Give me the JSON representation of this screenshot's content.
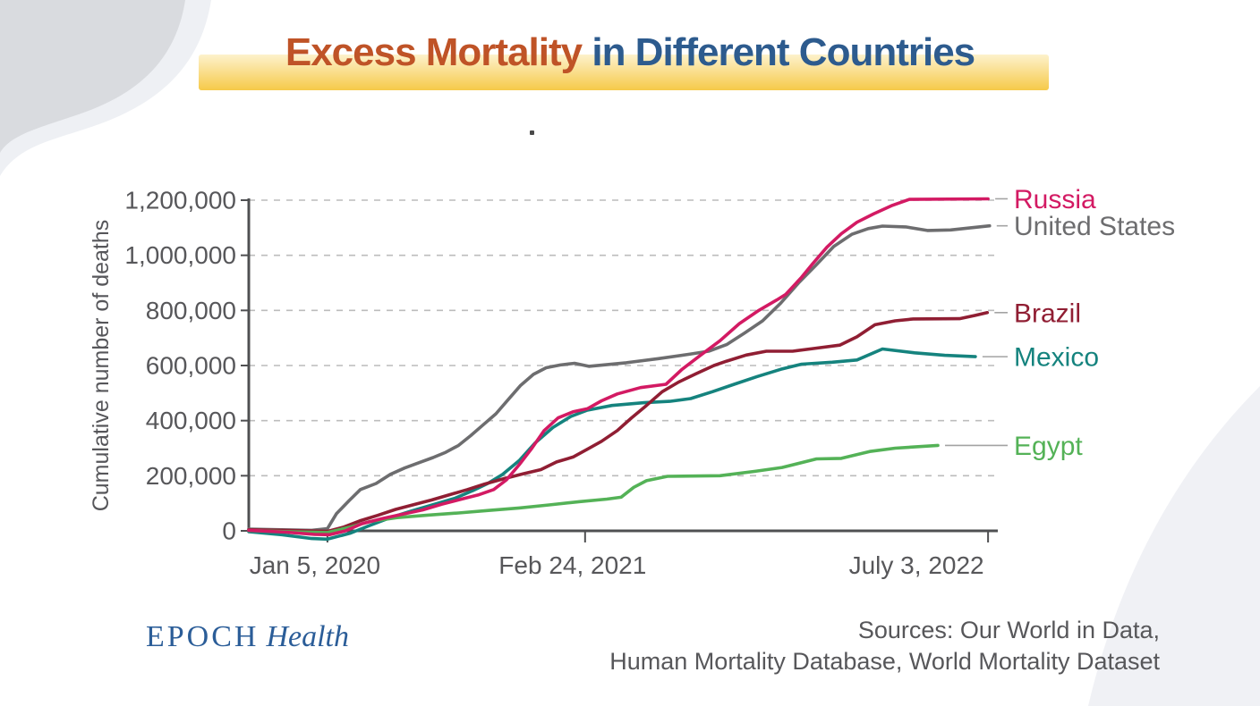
{
  "title": {
    "accent": "Excess Mortality",
    "rest": " in Different Countries"
  },
  "colors": {
    "title_accent": "#bf5327",
    "title_rest": "#2d5b8e",
    "band_top": "#fdf2cc",
    "band_bottom": "#f6ca49",
    "brand": "#2b5d98",
    "sources_text": "#57575a",
    "axis": "#4f5052",
    "tick_text": "#57575a",
    "grid": "#bcbcbc",
    "leader_line": "#a3a3a3",
    "blob_dark": "#d9dbdf",
    "blob_light": "#eef0f4",
    "corner_light": "#f0f1f5",
    "background": "#ffffff"
  },
  "footer": {
    "brand_primary": "EPOCH",
    "brand_secondary": "Health",
    "sources_line1": "Sources: Our World in Data,",
    "sources_line2": "Human Mortality Database, World Mortality Dataset"
  },
  "chart_data": {
    "type": "line",
    "title": "Excess Mortality in Different Countries",
    "xlabel": "",
    "ylabel": "Cumulative number of deaths",
    "ylim": [
      0,
      1200000
    ],
    "grid": true,
    "legend_position": "right-of-line-ends",
    "y_ticks": [
      0,
      200000,
      400000,
      600000,
      800000,
      1000000,
      1200000
    ],
    "y_tick_labels": [
      "0",
      "200,000",
      "400,000",
      "600,000",
      "800,000",
      "1,000,000",
      "1,200,000"
    ],
    "x_ticks": [
      {
        "label": "Jan 5, 2020",
        "pos": 0.105
      },
      {
        "label": "Feb 24, 2021",
        "pos": 0.449
      },
      {
        "label": "July 3, 2022",
        "pos": 0.987
      }
    ],
    "series": [
      {
        "name": "Russia",
        "color": "#d31a63",
        "points": [
          [
            0.0,
            2000
          ],
          [
            0.05,
            -5000
          ],
          [
            0.088,
            -13000
          ],
          [
            0.108,
            -14000
          ],
          [
            0.129,
            0
          ],
          [
            0.151,
            26000
          ],
          [
            0.179,
            45000
          ],
          [
            0.206,
            61000
          ],
          [
            0.232,
            76000
          ],
          [
            0.258,
            97000
          ],
          [
            0.284,
            115000
          ],
          [
            0.306,
            130000
          ],
          [
            0.327,
            150000
          ],
          [
            0.344,
            185000
          ],
          [
            0.361,
            240000
          ],
          [
            0.378,
            300000
          ],
          [
            0.394,
            363000
          ],
          [
            0.413,
            410000
          ],
          [
            0.433,
            432000
          ],
          [
            0.452,
            443000
          ],
          [
            0.471,
            472000
          ],
          [
            0.492,
            497000
          ],
          [
            0.523,
            520000
          ],
          [
            0.557,
            532000
          ],
          [
            0.578,
            585000
          ],
          [
            0.602,
            635000
          ],
          [
            0.629,
            690000
          ],
          [
            0.655,
            752000
          ],
          [
            0.681,
            800000
          ],
          [
            0.705,
            838000
          ],
          [
            0.717,
            858000
          ],
          [
            0.738,
            920000
          ],
          [
            0.753,
            970000
          ],
          [
            0.772,
            1030000
          ],
          [
            0.791,
            1078000
          ],
          [
            0.812,
            1120000
          ],
          [
            0.834,
            1150000
          ],
          [
            0.858,
            1180000
          ],
          [
            0.882,
            1203000
          ],
          [
            0.987,
            1205000
          ]
        ]
      },
      {
        "name": "United States",
        "color": "#6d6d6f",
        "points": [
          [
            0.0,
            6000
          ],
          [
            0.044,
            4000
          ],
          [
            0.084,
            2000
          ],
          [
            0.105,
            8000
          ],
          [
            0.117,
            62000
          ],
          [
            0.134,
            110000
          ],
          [
            0.149,
            150000
          ],
          [
            0.17,
            172000
          ],
          [
            0.189,
            205000
          ],
          [
            0.208,
            228000
          ],
          [
            0.227,
            247000
          ],
          [
            0.246,
            266000
          ],
          [
            0.263,
            285000
          ],
          [
            0.28,
            310000
          ],
          [
            0.296,
            345000
          ],
          [
            0.313,
            385000
          ],
          [
            0.33,
            425000
          ],
          [
            0.347,
            478000
          ],
          [
            0.363,
            528000
          ],
          [
            0.38,
            568000
          ],
          [
            0.397,
            592000
          ],
          [
            0.416,
            602000
          ],
          [
            0.435,
            608000
          ],
          [
            0.454,
            597000
          ],
          [
            0.504,
            610000
          ],
          [
            0.547,
            625000
          ],
          [
            0.588,
            641000
          ],
          [
            0.614,
            652000
          ],
          [
            0.638,
            676000
          ],
          [
            0.662,
            718000
          ],
          [
            0.686,
            762000
          ],
          [
            0.71,
            826000
          ],
          [
            0.734,
            900000
          ],
          [
            0.758,
            966000
          ],
          [
            0.781,
            1032000
          ],
          [
            0.805,
            1076000
          ],
          [
            0.827,
            1097000
          ],
          [
            0.846,
            1106000
          ],
          [
            0.877,
            1103000
          ],
          [
            0.906,
            1090000
          ],
          [
            0.937,
            1092000
          ],
          [
            0.965,
            1100000
          ],
          [
            0.989,
            1107000
          ]
        ]
      },
      {
        "name": "Brazil",
        "color": "#901e33",
        "points": [
          [
            0.0,
            4000
          ],
          [
            0.062,
            1000
          ],
          [
            0.105,
            -2000
          ],
          [
            0.127,
            14000
          ],
          [
            0.148,
            36000
          ],
          [
            0.172,
            56000
          ],
          [
            0.196,
            78000
          ],
          [
            0.22,
            95000
          ],
          [
            0.244,
            112000
          ],
          [
            0.268,
            131000
          ],
          [
            0.292,
            150000
          ],
          [
            0.315,
            170000
          ],
          [
            0.339,
            188000
          ],
          [
            0.366,
            207000
          ],
          [
            0.39,
            222000
          ],
          [
            0.411,
            250000
          ],
          [
            0.433,
            268000
          ],
          [
            0.452,
            296000
          ],
          [
            0.471,
            325000
          ],
          [
            0.492,
            364000
          ],
          [
            0.511,
            410000
          ],
          [
            0.531,
            455000
          ],
          [
            0.552,
            505000
          ],
          [
            0.574,
            540000
          ],
          [
            0.597,
            570000
          ],
          [
            0.621,
            600000
          ],
          [
            0.638,
            616000
          ],
          [
            0.664,
            638000
          ],
          [
            0.691,
            652000
          ],
          [
            0.726,
            652000
          ],
          [
            0.755,
            662000
          ],
          [
            0.789,
            674000
          ],
          [
            0.812,
            704000
          ],
          [
            0.836,
            748000
          ],
          [
            0.863,
            762000
          ],
          [
            0.887,
            769000
          ],
          [
            0.949,
            770000
          ],
          [
            0.97,
            782000
          ],
          [
            0.986,
            792000
          ]
        ]
      },
      {
        "name": "Mexico",
        "color": "#15837e",
        "points": [
          [
            0.0,
            -3000
          ],
          [
            0.044,
            -14000
          ],
          [
            0.084,
            -28000
          ],
          [
            0.105,
            -30000
          ],
          [
            0.136,
            -8000
          ],
          [
            0.16,
            18000
          ],
          [
            0.189,
            48000
          ],
          [
            0.217,
            72000
          ],
          [
            0.246,
            95000
          ],
          [
            0.275,
            118000
          ],
          [
            0.299,
            146000
          ],
          [
            0.319,
            172000
          ],
          [
            0.339,
            205000
          ],
          [
            0.361,
            255000
          ],
          [
            0.382,
            318000
          ],
          [
            0.406,
            375000
          ],
          [
            0.43,
            415000
          ],
          [
            0.452,
            438000
          ],
          [
            0.485,
            455000
          ],
          [
            0.528,
            465000
          ],
          [
            0.562,
            470000
          ],
          [
            0.59,
            480000
          ],
          [
            0.619,
            505000
          ],
          [
            0.648,
            532000
          ],
          [
            0.679,
            560000
          ],
          [
            0.71,
            586000
          ],
          [
            0.738,
            605000
          ],
          [
            0.779,
            612000
          ],
          [
            0.812,
            620000
          ],
          [
            0.846,
            660000
          ],
          [
            0.889,
            646000
          ],
          [
            0.929,
            637000
          ],
          [
            0.97,
            632000
          ]
        ]
      },
      {
        "name": "Egypt",
        "color": "#54b257",
        "points": [
          [
            0.0,
            1000
          ],
          [
            0.062,
            -4000
          ],
          [
            0.105,
            -6000
          ],
          [
            0.136,
            14000
          ],
          [
            0.162,
            34000
          ],
          [
            0.198,
            48000
          ],
          [
            0.239,
            57000
          ],
          [
            0.28,
            65000
          ],
          [
            0.32,
            74000
          ],
          [
            0.361,
            83000
          ],
          [
            0.401,
            94000
          ],
          [
            0.442,
            106000
          ],
          [
            0.478,
            115000
          ],
          [
            0.497,
            122000
          ],
          [
            0.514,
            158000
          ],
          [
            0.531,
            182000
          ],
          [
            0.559,
            198000
          ],
          [
            0.629,
            200000
          ],
          [
            0.676,
            216000
          ],
          [
            0.712,
            230000
          ],
          [
            0.758,
            261000
          ],
          [
            0.791,
            263000
          ],
          [
            0.829,
            288000
          ],
          [
            0.863,
            300000
          ],
          [
            0.92,
            310000
          ]
        ]
      }
    ]
  }
}
